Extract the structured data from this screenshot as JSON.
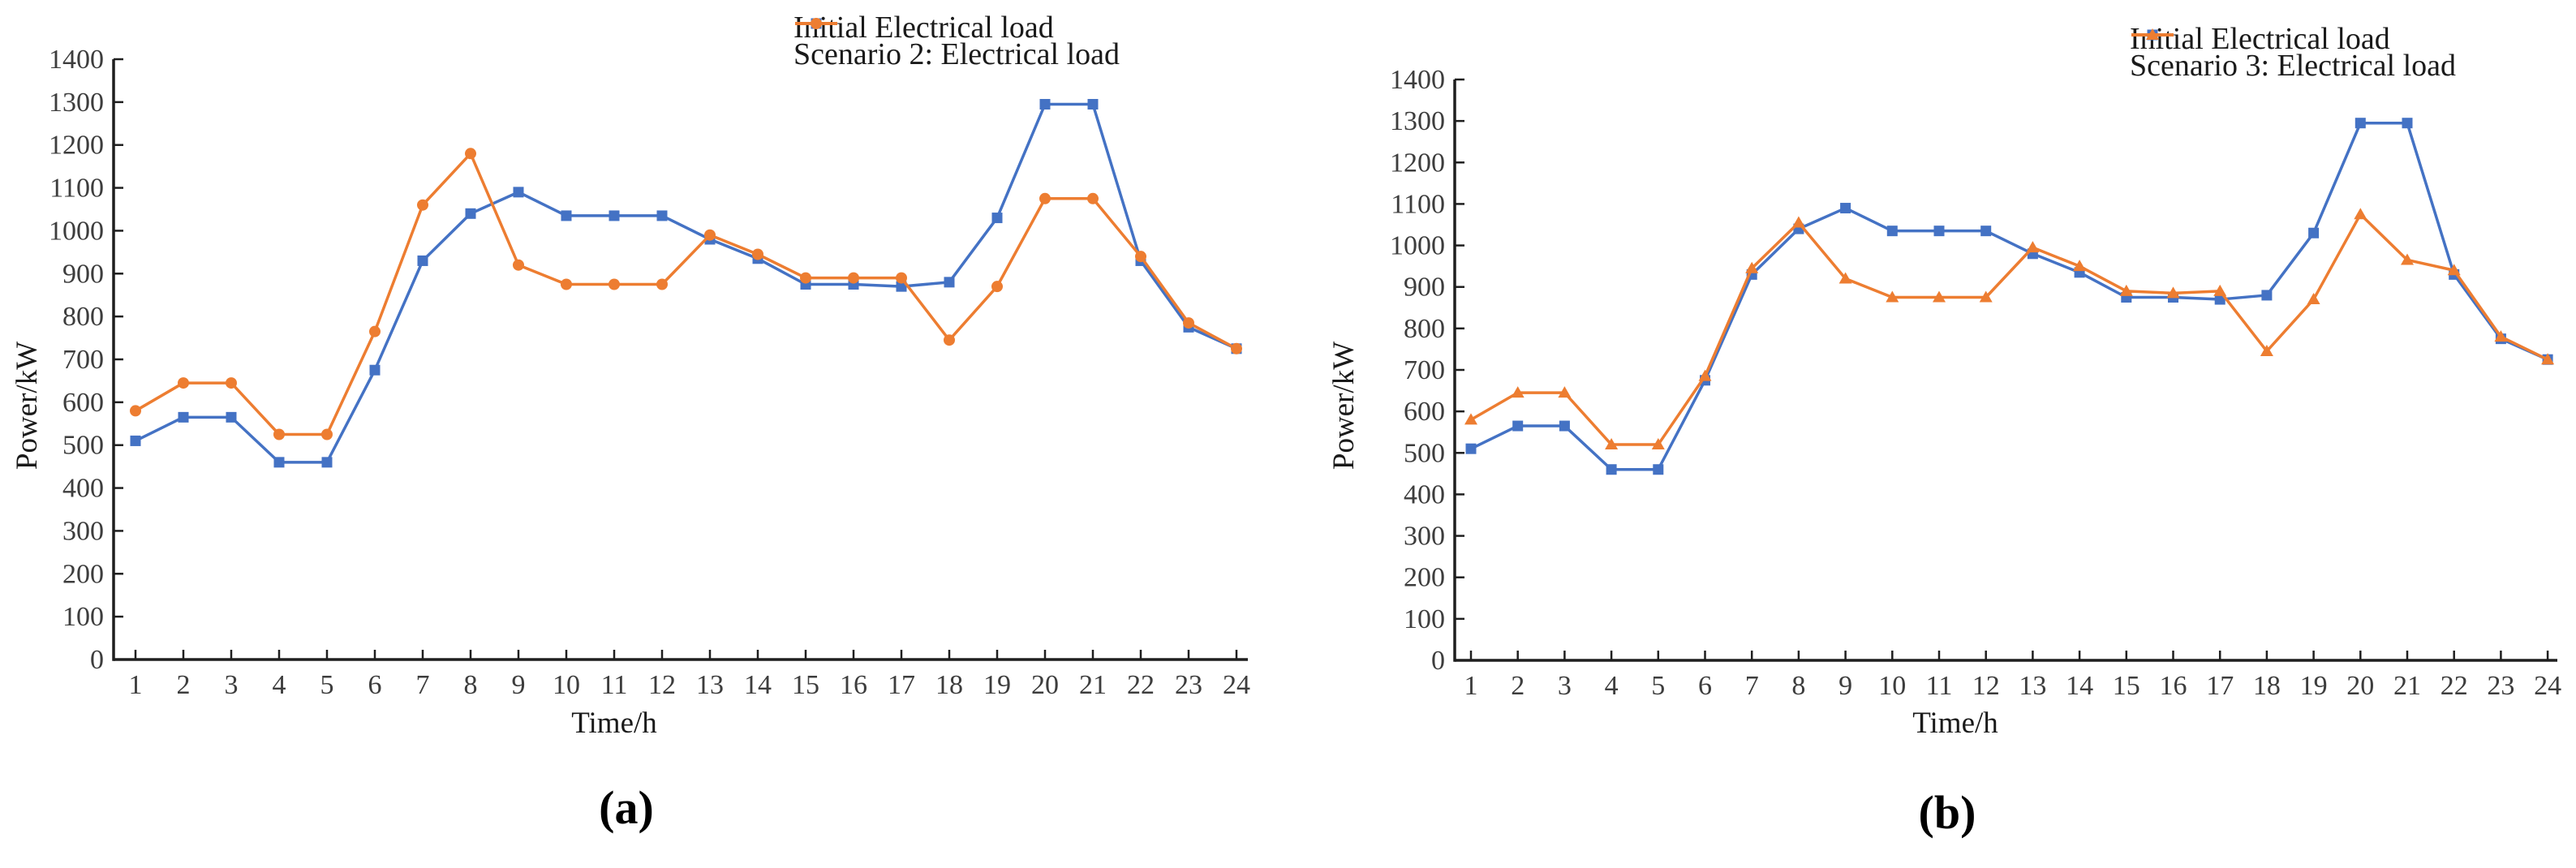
{
  "page": {
    "background": "#ffffff",
    "axis_color": "#1f1f1f",
    "tick_label_color": "#3d3d3d"
  },
  "chart_data": [
    {
      "type": "line",
      "panel_label": "(a)",
      "xlabel": "Time/h",
      "ylabel": "Power/kW",
      "x": [
        1,
        2,
        3,
        4,
        5,
        6,
        7,
        8,
        9,
        10,
        11,
        12,
        13,
        14,
        15,
        16,
        17,
        18,
        19,
        20,
        21,
        22,
        23,
        24
      ],
      "yticks": [
        0,
        100,
        200,
        300,
        400,
        500,
        600,
        700,
        800,
        900,
        1000,
        1100,
        1200,
        1300,
        1400
      ],
      "ylim": [
        0,
        1400
      ],
      "grid": false,
      "legend_position": "top-right",
      "series": [
        {
          "name": "Initial Electrical load",
          "color": "#4472C4",
          "marker": "square",
          "values": [
            510,
            565,
            565,
            460,
            460,
            675,
            930,
            1040,
            1090,
            1035,
            1035,
            1035,
            980,
            935,
            875,
            875,
            870,
            880,
            1030,
            1295,
            1295,
            930,
            775,
            725
          ]
        },
        {
          "name": "Scenario 2: Electrical load",
          "color": "#ED7D31",
          "marker": "circle",
          "values": [
            580,
            645,
            645,
            525,
            525,
            765,
            1060,
            1180,
            920,
            875,
            875,
            875,
            990,
            945,
            890,
            890,
            890,
            745,
            870,
            1075,
            1075,
            940,
            785,
            725
          ]
        }
      ]
    },
    {
      "type": "line",
      "panel_label": "(b)",
      "xlabel": "Time/h",
      "ylabel": "Power/kW",
      "x": [
        1,
        2,
        3,
        4,
        5,
        6,
        7,
        8,
        9,
        10,
        11,
        12,
        13,
        14,
        15,
        16,
        17,
        18,
        19,
        20,
        21,
        22,
        23,
        24
      ],
      "yticks": [
        0,
        100,
        200,
        300,
        400,
        500,
        600,
        700,
        800,
        900,
        1000,
        1100,
        1200,
        1300,
        1400
      ],
      "ylim": [
        0,
        1400
      ],
      "grid": false,
      "legend_position": "top-right",
      "series": [
        {
          "name": "Initial Electrical load",
          "color": "#4472C4",
          "marker": "square",
          "values": [
            510,
            565,
            565,
            460,
            460,
            675,
            930,
            1040,
            1090,
            1035,
            1035,
            1035,
            980,
            935,
            875,
            875,
            870,
            880,
            1030,
            1295,
            1295,
            930,
            775,
            725
          ]
        },
        {
          "name": "Scenario 3: Electrical load",
          "color": "#ED7D31",
          "marker": "triangle",
          "values": [
            580,
            645,
            645,
            520,
            520,
            685,
            945,
            1055,
            920,
            875,
            875,
            875,
            995,
            950,
            890,
            885,
            890,
            745,
            870,
            1075,
            965,
            940,
            780,
            725
          ]
        }
      ]
    }
  ]
}
